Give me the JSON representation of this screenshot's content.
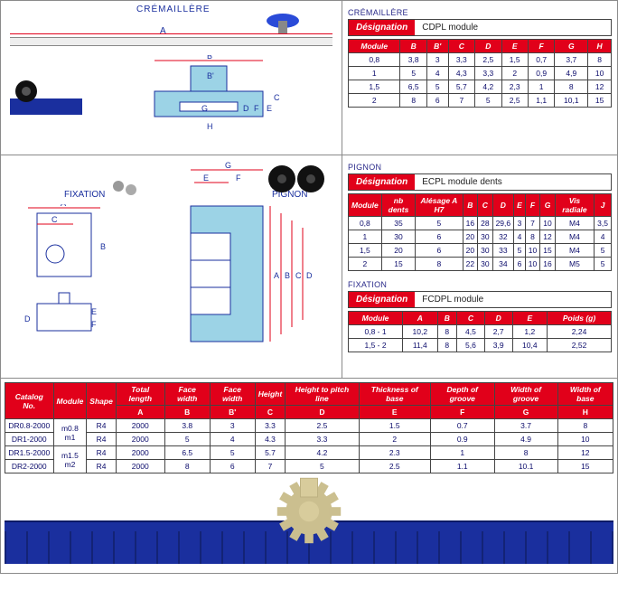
{
  "labels": {
    "cremaillere": "CRÉMAILLÈRE",
    "pignon": "PIGNON",
    "fixation": "FIXATION",
    "designation": "Désignation",
    "cdpl": "CDPL   module",
    "ecpl": "ECPL   module dents",
    "fcdpl": "FCDPL   module",
    "dim_A": "A",
    "dim_B": "B",
    "dim_Bp": "B'",
    "dim_C": "C",
    "dim_D": "D",
    "dim_E": "E",
    "dim_F": "F",
    "dim_G": "G",
    "dim_H": "H"
  },
  "table_cremaillere": {
    "headers": [
      "Module",
      "B",
      "B'",
      "C",
      "D",
      "E",
      "F",
      "G",
      "H"
    ],
    "rows": [
      [
        "0,8",
        "3,8",
        "3",
        "3,3",
        "2,5",
        "1,5",
        "0,7",
        "3,7",
        "8"
      ],
      [
        "1",
        "5",
        "4",
        "4,3",
        "3,3",
        "2",
        "0,9",
        "4,9",
        "10"
      ],
      [
        "1,5",
        "6,5",
        "5",
        "5,7",
        "4,2",
        "2,3",
        "1",
        "8",
        "12"
      ],
      [
        "2",
        "8",
        "6",
        "7",
        "5",
        "2,5",
        "1,1",
        "10,1",
        "15"
      ]
    ]
  },
  "table_pignon": {
    "headers": [
      "Module",
      "nb dents",
      "Alésage A H7",
      "B",
      "C",
      "D",
      "E",
      "F",
      "G",
      "Vis radiale",
      "J"
    ],
    "rows": [
      [
        "0,8",
        "35",
        "5",
        "16",
        "28",
        "29,6",
        "3",
        "7",
        "10",
        "M4",
        "3,5"
      ],
      [
        "1",
        "30",
        "6",
        "20",
        "30",
        "32",
        "4",
        "8",
        "12",
        "M4",
        "4"
      ],
      [
        "1,5",
        "20",
        "6",
        "20",
        "30",
        "33",
        "5",
        "10",
        "15",
        "M4",
        "5"
      ],
      [
        "2",
        "15",
        "8",
        "22",
        "30",
        "34",
        "6",
        "10",
        "16",
        "M5",
        "5"
      ]
    ]
  },
  "table_fixation": {
    "headers": [
      "Module",
      "A",
      "B",
      "C",
      "D",
      "E",
      "Poids (g)"
    ],
    "rows": [
      [
        "0,8 - 1",
        "10,2",
        "8",
        "4,5",
        "2,7",
        "1,2",
        "2,24"
      ],
      [
        "1,5 - 2",
        "11,4",
        "8",
        "5,6",
        "3,9",
        "10,4",
        "2,52"
      ]
    ]
  },
  "table_bottom": {
    "top_headers": [
      "Catalog No.",
      "Module",
      "Shape",
      "Total length",
      "Face width",
      "Face width",
      "Height",
      "Height to pitch line",
      "Thickness of base",
      "Depth of groove",
      "Width of groove",
      "Width of base"
    ],
    "sub_headers": [
      "",
      "",
      "",
      "A",
      "B",
      "B'",
      "C",
      "D",
      "E",
      "F",
      "G",
      "H"
    ],
    "module_labels": [
      "m0.8",
      "m1",
      "m1.5",
      "m2"
    ],
    "rows": [
      [
        "DR0.8-2000",
        "R4",
        "2000",
        "3.8",
        "3",
        "3.3",
        "2.5",
        "1.5",
        "0.7",
        "3.7",
        "8"
      ],
      [
        "DR1-2000",
        "R4",
        "2000",
        "5",
        "4",
        "4.3",
        "3.3",
        "2",
        "0.9",
        "4.9",
        "10"
      ],
      [
        "DR1.5-2000",
        "R4",
        "2000",
        "6.5",
        "5",
        "5.7",
        "4.2",
        "2.3",
        "1",
        "8",
        "12"
      ],
      [
        "DR2-2000",
        "R4",
        "2000",
        "8",
        "6",
        "7",
        "5",
        "2.5",
        "1.1",
        "10.1",
        "15"
      ]
    ]
  },
  "colors": {
    "red": "#e1001a",
    "blue_text": "#0b0b6b",
    "border": "#444444",
    "rack": "#1a2f9e",
    "diagram_fill": "#9cd3e6"
  }
}
